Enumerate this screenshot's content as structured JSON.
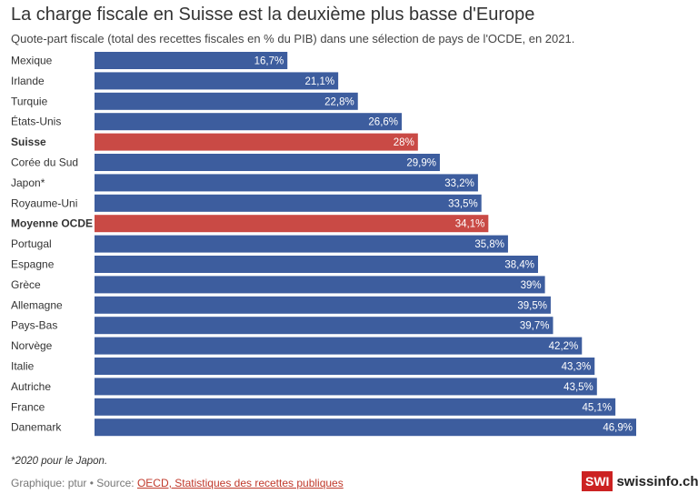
{
  "header": {
    "title": "La charge fiscale en Suisse est la deuxième plus basse d'Europe",
    "subtitle": "Quote-part fiscale (total des recettes fiscales en % du PIB) dans une sélection de pays de l'OCDE, en 2021."
  },
  "chart_data": {
    "type": "bar",
    "orientation": "horizontal",
    "categories": [
      "Mexique",
      "Irlande",
      "Turquie",
      "États-Unis",
      "Suisse",
      "Corée du Sud",
      "Japon*",
      "Royaume-Uni",
      "Moyenne OCDE",
      "Portugal",
      "Espagne",
      "Grèce",
      "Allemagne",
      "Pays-Bas",
      "Norvège",
      "Italie",
      "Autriche",
      "France",
      "Danemark"
    ],
    "values": [
      16.7,
      21.1,
      22.8,
      26.6,
      28,
      29.9,
      33.2,
      33.5,
      34.1,
      35.8,
      38.4,
      39,
      39.5,
      39.7,
      42.2,
      43.3,
      43.5,
      45.1,
      46.9
    ],
    "value_labels": [
      "16,7%",
      "21,1%",
      "22,8%",
      "26,6%",
      "28%",
      "29,9%",
      "33,2%",
      "33,5%",
      "34,1%",
      "35,8%",
      "38,4%",
      "39%",
      "39,5%",
      "39,7%",
      "42,2%",
      "43,3%",
      "43,5%",
      "45,1%",
      "46,9%"
    ],
    "highlighted": [
      "Suisse",
      "Moyenne OCDE"
    ],
    "colors": {
      "default": "#3d5d9e",
      "highlight": "#c94a45"
    },
    "xlim": [
      0,
      46.9
    ],
    "grid": false,
    "legend": "none"
  },
  "footer": {
    "note": "*2020 pour le Japon.",
    "credit_prefix": "Graphique: ptur • Source: ",
    "source_link": "OECD, Statistiques des recettes publiques",
    "logo_box": "SWI",
    "logo_text": "swissinfo.ch"
  }
}
